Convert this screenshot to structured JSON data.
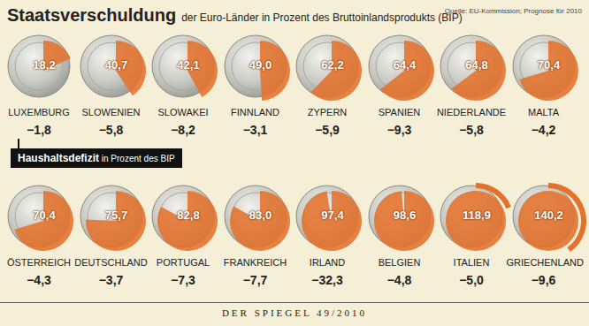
{
  "chart_data": {
    "type": "pie",
    "title": "Staatsverschuldung",
    "subtitle": "der Euro-Länder in Prozent des Bruttoinlandsprodukts (BIP)",
    "source": "Quelle: EU-Kommission; Prognose für 2010",
    "categories": [
      "LUXEMBURG",
      "SLOWENIEN",
      "SLOWAKEI",
      "FINNLAND",
      "ZYPERN",
      "SPANIEN",
      "NIEDERLANDE",
      "MALTA",
      "ÖSTERREICH",
      "DEUTSCHLAND",
      "PORTUGAL",
      "FRANKREICH",
      "IRLAND",
      "BELGIEN",
      "ITALIEN",
      "GRIECHENLAND"
    ],
    "values": [
      18.2,
      40.7,
      42.1,
      49.0,
      62.2,
      64.4,
      64.8,
      70.4,
      70.4,
      75.7,
      82.8,
      83.0,
      97.4,
      98.6,
      118.9,
      140.2
    ],
    "value_labels": [
      "18,2",
      "40,7",
      "42,1",
      "49,0",
      "62,2",
      "64,4",
      "64,8",
      "70,4",
      "70,4",
      "75,7",
      "82,8",
      "83,0",
      "97,4",
      "98,6",
      "118,9",
      "140,2"
    ],
    "color": "#e4722c",
    "ylim": [
      0,
      100
    ],
    "data_labels": true,
    "deficit": {
      "label": "Haushaltsdefizit in Prozent des BIP",
      "values": [
        -1.8,
        -5.8,
        -8.2,
        -3.1,
        -5.9,
        -9.3,
        -5.8,
        -4.2,
        -4.3,
        -3.7,
        -7.3,
        -7.7,
        -32.3,
        -4.8,
        -5.0,
        -9.6
      ],
      "value_labels": [
        "−1,8",
        "−5,8",
        "−8,2",
        "−3,1",
        "−5,9",
        "−9,3",
        "−5,8",
        "−4,2",
        "−4,3",
        "−3,7",
        "−7,3",
        "−7,7",
        "−32,3",
        "−4,8",
        "−5,0",
        "−9,6"
      ]
    },
    "footer": "DER SPIEGEL 49/2010"
  }
}
